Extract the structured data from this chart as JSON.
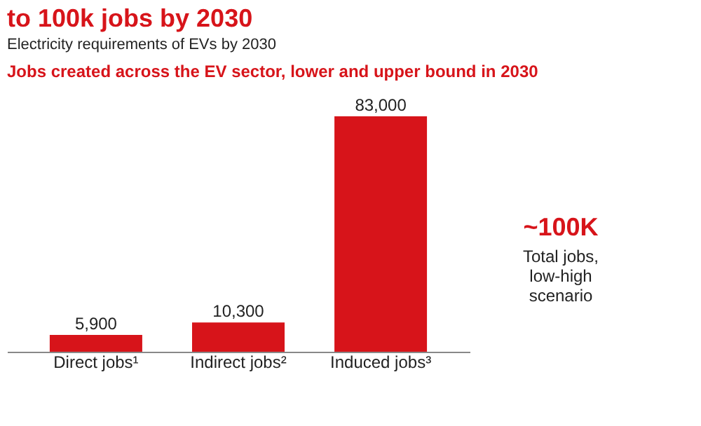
{
  "chart_data": {
    "type": "bar",
    "title": "to 100k jobs by 2030",
    "subtitle": "Electricity requirements of EVs by 2030",
    "categories": [
      "Direct jobs¹",
      "Indirect jobs²",
      "Induced jobs³"
    ],
    "values": [
      5900,
      10300,
      83000
    ],
    "value_labels": [
      "5,900",
      "10,300",
      "83,000"
    ],
    "color": "#d7141a",
    "annotations": [
      "Jobs created across the EV sector, lower and upper bound in 2030",
      "~100K",
      "Total jobs, low-high scenario"
    ],
    "grid": false
  }
}
